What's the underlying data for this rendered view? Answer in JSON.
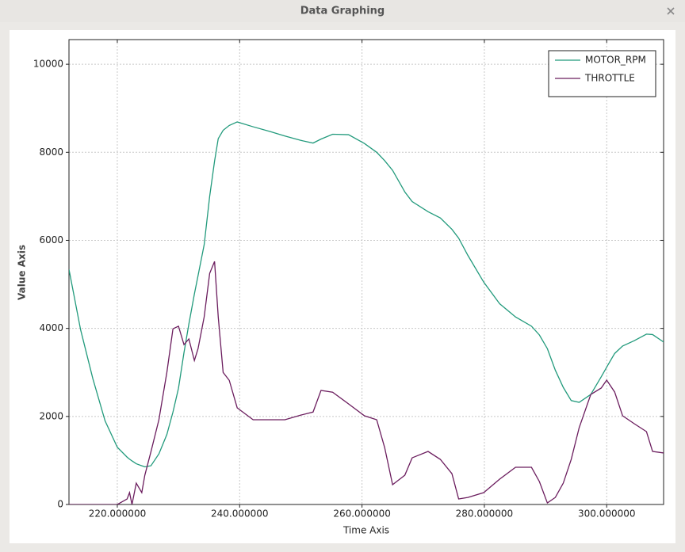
{
  "window": {
    "title": "Data Graphing"
  },
  "chart_data": {
    "type": "line",
    "xlabel": "Time Axis",
    "ylabel": "Value Axis",
    "x": [
      212.1,
      214.0,
      216.0,
      218.0,
      220.0,
      221.6,
      222.0,
      222.4,
      223.1,
      224.0,
      224.5,
      225.5,
      226.8,
      228.1,
      229.1,
      230.0,
      230.9,
      231.7,
      232.6,
      233.2,
      234.2,
      235.1,
      235.9,
      236.5,
      237.3,
      238.3,
      239.6,
      242.2,
      245.0,
      247.4,
      250.0,
      252.0,
      253.3,
      255.2,
      257.8,
      260.4,
      262.4,
      263.7,
      265.0,
      267.0,
      268.2,
      270.8,
      272.8,
      274.7,
      275.8,
      277.3,
      279.9,
      282.5,
      285.1,
      287.7,
      289.0,
      290.3,
      291.6,
      292.9,
      294.2,
      295.5,
      297.4,
      299.1,
      300.0,
      301.3,
      302.6,
      304.5,
      306.5,
      307.5,
      309.3
    ],
    "series": [
      {
        "name": "MOTOR_RPM",
        "color": "#229a7c",
        "values": [
          5340,
          3970,
          2860,
          1900,
          1300,
          1075,
          1030,
          990,
          925,
          880,
          855,
          880,
          1150,
          1590,
          2100,
          2640,
          3450,
          4100,
          4780,
          5200,
          5900,
          7000,
          7800,
          8310,
          8500,
          8610,
          8690,
          8580,
          8470,
          8370,
          8270,
          8210,
          8300,
          8410,
          8400,
          8200,
          8000,
          7810,
          7590,
          7100,
          6880,
          6650,
          6510,
          6250,
          6050,
          5660,
          5050,
          4560,
          4260,
          4050,
          3850,
          3540,
          3050,
          2660,
          2360,
          2320,
          2500,
          2900,
          3120,
          3430,
          3600,
          3720,
          3870,
          3860,
          3690
        ]
      },
      {
        "name": "THROTTLE",
        "color": "#6b1d5e",
        "values": [
          0,
          0,
          0,
          0,
          0,
          125,
          270,
          0,
          485,
          270,
          665,
          1200,
          1925,
          3000,
          3990,
          4050,
          3630,
          3760,
          3270,
          3540,
          4260,
          5250,
          5520,
          4260,
          3000,
          2820,
          2195,
          1925,
          1925,
          1925,
          2030,
          2100,
          2590,
          2550,
          2285,
          2015,
          1925,
          1295,
          450,
          665,
          1060,
          1205,
          1025,
          700,
          125,
          160,
          270,
          575,
          845,
          845,
          520,
          35,
          160,
          485,
          1025,
          1745,
          2500,
          2645,
          2825,
          2555,
          2015,
          1835,
          1655,
          1205,
          1170
        ]
      }
    ],
    "xlim": [
      212.1,
      309.3
    ],
    "ylim": [
      0,
      10560
    ],
    "xticks": [
      {
        "value": 220,
        "label": "220.000000"
      },
      {
        "value": 240,
        "label": "240.000000"
      },
      {
        "value": 260,
        "label": "260.000000"
      },
      {
        "value": 280,
        "label": "280.000000"
      },
      {
        "value": 300,
        "label": "300.000000"
      }
    ],
    "yticks": [
      0,
      2000,
      4000,
      6000,
      8000,
      10000
    ],
    "grid": true,
    "legend": "upper right"
  }
}
